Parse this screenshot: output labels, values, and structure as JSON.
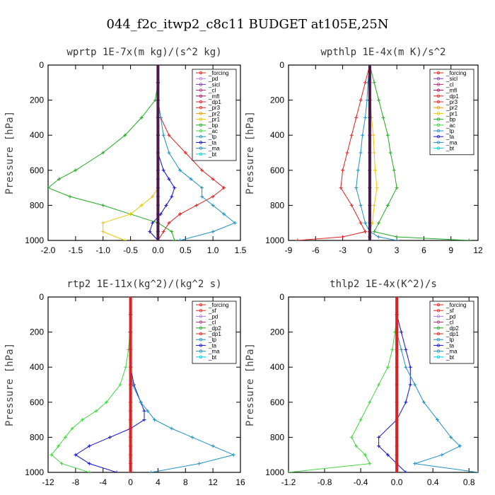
{
  "title": "044_f2c_itwp2_c8c11  BUDGET at105E,25N",
  "chart_data": [
    {
      "type": "line",
      "title": "wprtp  1E-7x(m kg)/(s^2 kg)",
      "ylabel": "Pressure [hPa]",
      "xlim": [
        -2.0,
        1.5
      ],
      "xticks": [
        -2.0,
        -1.5,
        -1.0,
        -0.5,
        0.0,
        0.5,
        1.0,
        1.5
      ],
      "xtick_labels": [
        "-2.0",
        "-1.5",
        "-1.0",
        "-0.5",
        "0.0",
        "0.5",
        "1.0",
        "1.5"
      ],
      "ylim": [
        1000,
        0
      ],
      "yticks": [
        0,
        200,
        400,
        600,
        800,
        1000
      ],
      "legend_position": "top-right",
      "legend": [
        "_forcing",
        "_pd",
        "_sicl",
        "_cl",
        "_mfl",
        "_dp1",
        "_pr3",
        "_pr2",
        "_pr1",
        "_bp",
        "_ac",
        "_tp",
        "_ta",
        "_ma",
        "_bt"
      ],
      "y": [
        0,
        100,
        200,
        300,
        400,
        500,
        600,
        650,
        700,
        750,
        800,
        850,
        900,
        950,
        1000
      ],
      "series": [
        {
          "name": "_bp",
          "color": "#22aa22",
          "values": [
            0,
            0,
            -0.05,
            -0.3,
            -0.6,
            -1.0,
            -1.5,
            -1.8,
            -2.0,
            -1.6,
            -1.0,
            -0.5,
            0.0,
            0.25,
            0.3
          ]
        },
        {
          "name": "_pr1",
          "color": "#e6c800",
          "values": [
            0,
            0,
            0,
            0,
            0,
            0,
            0,
            0,
            0,
            -0.1,
            -0.3,
            -0.5,
            -1.0,
            -1.0,
            -0.6
          ]
        },
        {
          "name": "_dp1",
          "color": "#e02020",
          "values": [
            0,
            0,
            0,
            0.05,
            0.2,
            0.5,
            0.8,
            1.0,
            1.2,
            1.0,
            0.7,
            0.4,
            0.2,
            0.1,
            0
          ]
        },
        {
          "name": "_tp",
          "color": "#2090c0",
          "values": [
            0,
            0,
            0,
            0.05,
            0.1,
            0.2,
            0.4,
            0.6,
            0.8,
            0.8,
            1.0,
            1.2,
            1.4,
            1.0,
            0.4
          ]
        },
        {
          "name": "_ta",
          "color": "#1010d0",
          "values": [
            0,
            0,
            0,
            0,
            0,
            0,
            0.1,
            0.2,
            0.3,
            0.25,
            0.15,
            0.05,
            -0.1,
            -0.15,
            0
          ]
        },
        {
          "name": "_forcing",
          "color": "#4a1a4a",
          "values": [
            0,
            0,
            0,
            0,
            0,
            0,
            0,
            0,
            0,
            0,
            0,
            0,
            0,
            0,
            0
          ]
        }
      ]
    },
    {
      "type": "line",
      "title": "wpthlp  1E-4x(m K)/s^2",
      "ylabel": "Pressure [hPa]",
      "xlim": [
        -9,
        12
      ],
      "xticks": [
        -9,
        -6,
        -3,
        0,
        3,
        6,
        9,
        12
      ],
      "xtick_labels": [
        "-9",
        "-6",
        "-3",
        "0",
        "3",
        "6",
        "9",
        "12"
      ],
      "ylim": [
        1000,
        0
      ],
      "yticks": [
        0,
        200,
        400,
        600,
        800,
        1000
      ],
      "legend_position": "top-right",
      "legend": [
        "_forcing",
        "_sicl",
        "_cl",
        "_mfl",
        "_dp1",
        "_pr3",
        "_pr2",
        "_pr1",
        "_bp",
        "_ac",
        "_tp",
        "_ta",
        "_ma",
        "_bt"
      ],
      "y": [
        0,
        100,
        200,
        300,
        400,
        500,
        600,
        700,
        800,
        900,
        950,
        980,
        1000
      ],
      "series": [
        {
          "name": "_bp",
          "color": "#22aa22",
          "values": [
            0,
            0.5,
            1,
            1.5,
            2,
            2.3,
            2.7,
            3,
            2,
            1,
            0.5,
            3,
            11
          ]
        },
        {
          "name": "_dp1",
          "color": "#e02020",
          "values": [
            0,
            -0.5,
            -1,
            -1.5,
            -2,
            -2.5,
            -3,
            -3.2,
            -2,
            -1,
            -0.5,
            -3,
            -8
          ]
        },
        {
          "name": "_tp",
          "color": "#2090c0",
          "values": [
            0,
            -0.2,
            -0.3,
            -0.5,
            -0.8,
            -1,
            -1.3,
            -1.5,
            -1,
            -0.5,
            0,
            1,
            3
          ]
        },
        {
          "name": "_pr1",
          "color": "#e6c800",
          "values": [
            0,
            0,
            0.1,
            0.2,
            0.4,
            0.5,
            0.6,
            0.8,
            0.5,
            0.3,
            0,
            0,
            0
          ]
        },
        {
          "name": "_forcing",
          "color": "#4a1a4a",
          "values": [
            0,
            0,
            0,
            0,
            0,
            0,
            0,
            0,
            0,
            0,
            0,
            0,
            0
          ]
        }
      ]
    },
    {
      "type": "line",
      "title": "rtp2  1E-11x(kg^2)/(kg^2 s)",
      "ylabel": "Pressure [hPa]",
      "xlim": [
        -12,
        16
      ],
      "xticks": [
        -12,
        -8,
        -4,
        0,
        4,
        8,
        12,
        16
      ],
      "xtick_labels": [
        "-12",
        "-8",
        "-4",
        "0",
        "4",
        "8",
        "12",
        "16"
      ],
      "ylim": [
        1000,
        0
      ],
      "yticks": [
        0,
        200,
        400,
        600,
        800,
        1000
      ],
      "legend_position": "top-right",
      "legend": [
        "_forcing",
        "_sf",
        "_pd",
        "_cl",
        "_dp2",
        "_dp1",
        "_tp",
        "_ta",
        "_ma",
        "_bt"
      ],
      "y": [
        0,
        100,
        200,
        300,
        400,
        500,
        600,
        650,
        700,
        750,
        800,
        850,
        900,
        950,
        1000
      ],
      "series": [
        {
          "name": "_dp1",
          "color": "#44d444",
          "values": [
            0,
            0,
            -0.1,
            -0.3,
            -0.7,
            -1.5,
            -3.5,
            -5,
            -7,
            -8.5,
            -9.5,
            -10.5,
            -11.5,
            -10,
            -6
          ]
        },
        {
          "name": "_ta",
          "color": "#1010d0",
          "values": [
            0,
            0,
            0,
            0,
            0,
            0.5,
            1.5,
            2,
            2,
            0,
            -3,
            -6,
            -8,
            -6,
            -2
          ]
        },
        {
          "name": "_tp",
          "color": "#2090c0",
          "values": [
            0,
            0,
            0,
            0,
            0,
            0.3,
            1.5,
            2.5,
            3.5,
            6,
            9,
            12,
            15,
            10,
            3
          ]
        },
        {
          "name": "_forcing",
          "color": "#e02020",
          "values": [
            0,
            0,
            0,
            0,
            0,
            0,
            0,
            0,
            0,
            0,
            0,
            0,
            0,
            0,
            0
          ]
        }
      ]
    },
    {
      "type": "line",
      "title": "thlp2  1E-4x(K^2)/s",
      "ylabel": "Pressure [hPa]",
      "xlim": [
        -1.2,
        0.9
      ],
      "xticks": [
        -1.2,
        -0.8,
        -0.4,
        0.0,
        0.4,
        0.8
      ],
      "xtick_labels": [
        "-1.2",
        "-0.8",
        "-0.4",
        "0.0",
        "0.4",
        "0.8"
      ],
      "ylim": [
        1000,
        0
      ],
      "yticks": [
        0,
        200,
        400,
        600,
        800,
        1000
      ],
      "legend_position": "top-right",
      "legend": [
        "_forcing",
        "_sf",
        "_pd",
        "_cl",
        "_dp2",
        "_dp1",
        "_tp",
        "_ta",
        "_ma",
        "_bt"
      ],
      "y": [
        0,
        100,
        200,
        300,
        400,
        500,
        600,
        700,
        800,
        850,
        900,
        950,
        1000
      ],
      "series": [
        {
          "name": "_dp1",
          "color": "#44d444",
          "values": [
            0,
            0,
            -0.02,
            -0.05,
            -0.1,
            -0.2,
            -0.3,
            -0.4,
            -0.5,
            -0.45,
            -0.35,
            -0.3,
            -1.2
          ]
        },
        {
          "name": "_ta",
          "color": "#1010d0",
          "values": [
            0,
            0,
            0.05,
            0.1,
            0.15,
            0.15,
            0.1,
            0,
            -0.2,
            -0.2,
            -0.1,
            0,
            0.1
          ]
        },
        {
          "name": "_tp",
          "color": "#2090c0",
          "values": [
            0,
            0,
            0,
            0.05,
            0.1,
            0.2,
            0.3,
            0.45,
            0.6,
            0.7,
            0.5,
            0.2,
            0.9
          ]
        },
        {
          "name": "_forcing",
          "color": "#e02020",
          "values": [
            0,
            0,
            0,
            0,
            0,
            0,
            0,
            0,
            0,
            0,
            0,
            0,
            0
          ]
        }
      ]
    }
  ]
}
